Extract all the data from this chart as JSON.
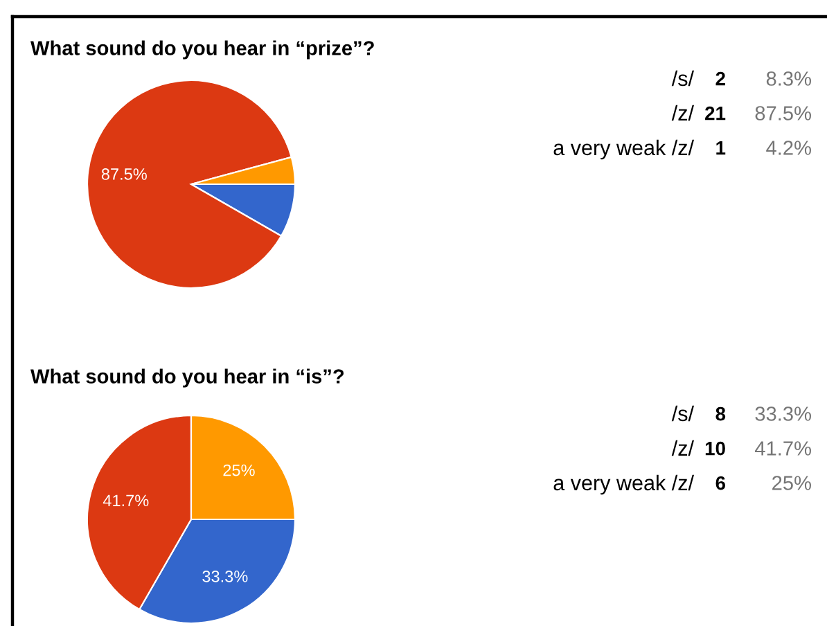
{
  "chart_data": [
    {
      "type": "pie",
      "title": "What sound do you hear in “prize”?",
      "categories": [
        null,
        null,
        null
      ],
      "values": [
        8.3,
        87.5,
        4.2
      ],
      "colors": [
        "#3366cc",
        "#dc3912",
        "#ff9900"
      ],
      "value_labels": [
        null,
        "87.5%",
        null
      ]
    },
    {
      "type": "other",
      "categories": [
        "/s/",
        "/z/",
        "a very weak /z/"
      ],
      "values": [
        2,
        21,
        1
      ],
      "data_labels": true,
      "annotations": [
        "8.3%",
        "87.5%",
        "4.2%"
      ]
    },
    {
      "type": "pie",
      "title": "What sound do you hear in “is”?",
      "categories": [
        null,
        null,
        null
      ],
      "values": [
        33.3,
        41.7,
        25
      ],
      "colors": [
        "#3366cc",
        "#dc3912",
        "#ff9900"
      ],
      "value_labels": [
        "33.3%",
        "41.7%",
        "25%"
      ]
    },
    {
      "type": "other",
      "categories": [
        "/s/",
        "/z/",
        "a very weak /z/"
      ],
      "values": [
        8,
        10,
        6
      ],
      "data_labels": true,
      "annotations": [
        "33.3%",
        "41.7%",
        "25%"
      ]
    }
  ]
}
